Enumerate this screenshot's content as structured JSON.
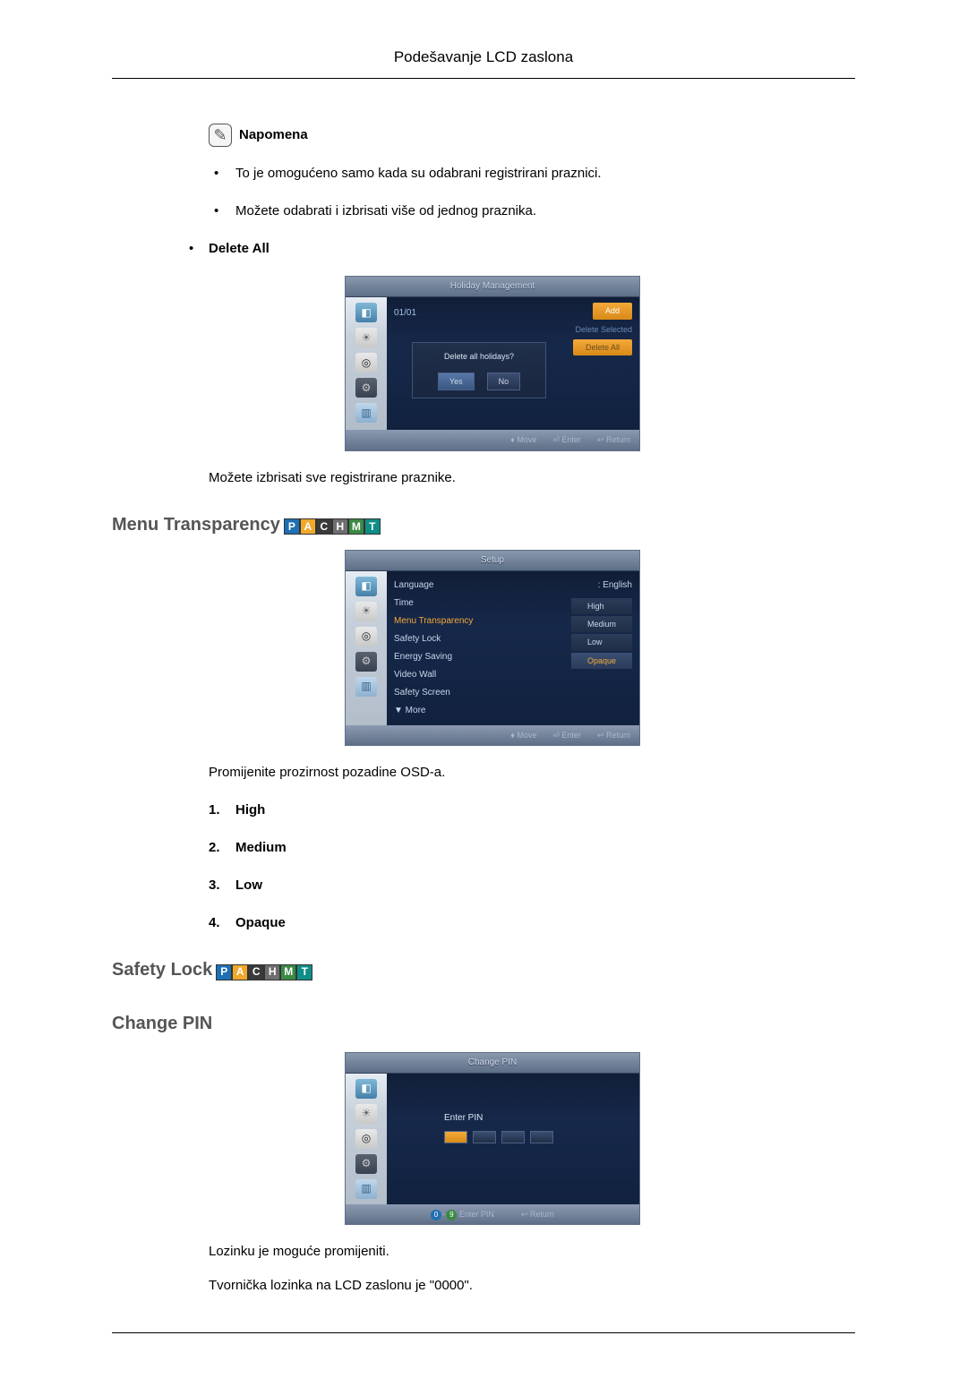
{
  "page": {
    "header": "Podešavanje LCD zaslona"
  },
  "badges": {
    "items": [
      "P",
      "A",
      "C",
      "H",
      "M",
      "T"
    ],
    "colors": [
      "#1f6fb3",
      "#f0a82c",
      "#3a3a3a",
      "#6e6e6e",
      "#3a8a45",
      "#0f8d88"
    ]
  },
  "note": {
    "heading": "Napomena",
    "items": [
      "To je omogućeno samo kada su odabrani registrirani praznici.",
      "Možete odabrati i izbrisati više od jednog praznika."
    ]
  },
  "deleteAll": {
    "label": "Delete All",
    "after": "Možete izbrisati sve registrirane praznike."
  },
  "osd1": {
    "title": "Holiday Management",
    "date": "01/01",
    "buttons": {
      "add": "Add",
      "delSel": "Delete Selected",
      "delAll": "Delete All"
    },
    "dialog": {
      "text": "Delete all holidays?",
      "yes": "Yes",
      "no": "No"
    },
    "footer": {
      "move": "Move",
      "enter": "Enter",
      "return": "Return"
    },
    "colors": {
      "accent": "#f4a93a"
    }
  },
  "menuTransparency": {
    "title": "Menu Transparency",
    "after": "Promijenite prozirnost pozadine OSD-a.",
    "options": [
      "High",
      "Medium",
      "Low",
      "Opaque"
    ]
  },
  "osd2": {
    "title": "Setup",
    "rows": [
      {
        "label": "Language",
        "value": ": English",
        "hl": false
      },
      {
        "label": "Time",
        "value": "",
        "hl": false
      },
      {
        "label": "Menu Transparency",
        "value": "",
        "hl": true
      },
      {
        "label": "Safety Lock",
        "value": "",
        "hl": false
      },
      {
        "label": "Energy Saving",
        "value": "",
        "hl": false
      },
      {
        "label": "Video Wall",
        "value": "",
        "hl": false
      },
      {
        "label": "Safety Screen",
        "value": "",
        "hl": false
      },
      {
        "label": "▼ More",
        "value": "",
        "hl": false
      }
    ],
    "opts": [
      "High",
      "Medium",
      "Low",
      "Opaque"
    ],
    "optSel": 3,
    "footer": {
      "move": "Move",
      "enter": "Enter",
      "return": "Return"
    }
  },
  "safetyLock": {
    "title": "Safety Lock"
  },
  "changePin": {
    "title": "Change PIN",
    "after1": "Lozinku je moguće promijeniti.",
    "after2": "Tvornička lozinka na LCD zaslonu je \"0000\"."
  },
  "osd3": {
    "title": "Change PIN",
    "enter": "Enter PIN",
    "footer": {
      "enterpin": "Enter PIN",
      "return": "Return"
    },
    "footTags": [
      "0",
      "9"
    ],
    "footTagColors": [
      "#1f6fb3",
      "#3a8a45"
    ]
  }
}
